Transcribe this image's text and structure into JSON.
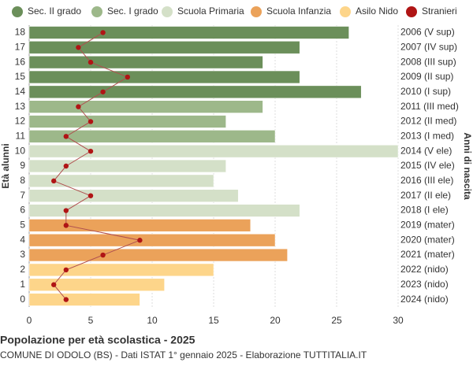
{
  "chart_data": {
    "type": "bar",
    "title": "Popolazione per età scolastica - 2025",
    "subtitle": "COMUNE DI ODOLO (BS) - Dati ISTAT 1° gennaio 2025 - Elaborazione TUTTITALIA.IT",
    "y_label": "Età alunni",
    "y2_label": "Anni di nascita",
    "categories": [
      "18",
      "17",
      "16",
      "15",
      "14",
      "13",
      "12",
      "11",
      "10",
      "9",
      "8",
      "7",
      "6",
      "5",
      "4",
      "3",
      "2",
      "1",
      "0"
    ],
    "y2_categories": [
      "2006 (V sup)",
      "2007 (IV sup)",
      "2008 (III sup)",
      "2009 (II sup)",
      "2010 (I sup)",
      "2011 (III med)",
      "2012 (II med)",
      "2013 (I med)",
      "2014 (V ele)",
      "2015 (IV ele)",
      "2016 (III ele)",
      "2017 (II ele)",
      "2018 (I ele)",
      "2019 (mater)",
      "2020 (mater)",
      "2021 (mater)",
      "2022 (nido)",
      "2023 (nido)",
      "2024 (nido)"
    ],
    "series": [
      {
        "name": "Sec. II grado",
        "color": "#6b8f5a",
        "values": [
          26,
          22,
          19,
          22,
          27,
          null,
          null,
          null,
          null,
          null,
          null,
          null,
          null,
          null,
          null,
          null,
          null,
          null,
          null
        ]
      },
      {
        "name": "Sec. I grado",
        "color": "#9db88a",
        "values": [
          null,
          null,
          null,
          null,
          null,
          19,
          16,
          20,
          null,
          null,
          null,
          null,
          null,
          null,
          null,
          null,
          null,
          null,
          null
        ]
      },
      {
        "name": "Scuola Primaria",
        "color": "#d4e0c8",
        "values": [
          null,
          null,
          null,
          null,
          null,
          null,
          null,
          null,
          30,
          16,
          15,
          17,
          22,
          null,
          null,
          null,
          null,
          null,
          null
        ]
      },
      {
        "name": "Scuola Infanzia",
        "color": "#eba25a",
        "values": [
          null,
          null,
          null,
          null,
          null,
          null,
          null,
          null,
          null,
          null,
          null,
          null,
          null,
          18,
          20,
          21,
          null,
          null,
          null
        ]
      },
      {
        "name": "Asilo Nido",
        "color": "#fdd58a",
        "values": [
          null,
          null,
          null,
          null,
          null,
          null,
          null,
          null,
          null,
          null,
          null,
          null,
          null,
          null,
          null,
          null,
          15,
          11,
          9
        ]
      },
      {
        "name": "Stranieri",
        "color": "#b01515",
        "kind": "line",
        "values": [
          6,
          4,
          5,
          8,
          6,
          4,
          5,
          3,
          5,
          3,
          2,
          5,
          3,
          3,
          9,
          6,
          3,
          2,
          3
        ]
      }
    ],
    "xlim": [
      0,
      30
    ],
    "xticks": [
      0,
      5,
      10,
      15,
      20,
      25,
      30
    ],
    "grid": true
  }
}
